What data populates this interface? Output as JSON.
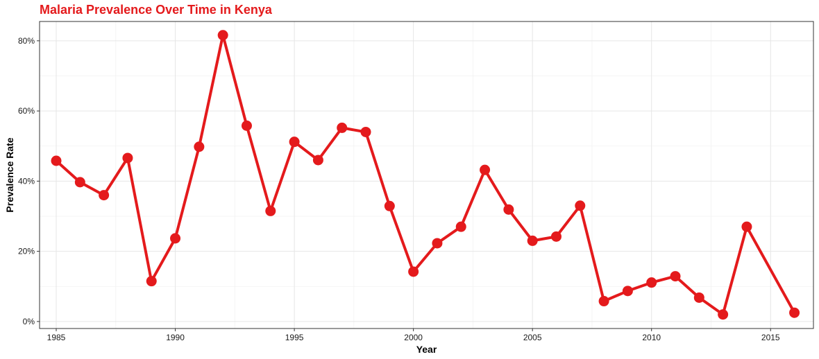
{
  "chart_data": {
    "type": "line",
    "title": "Malaria Prevalence Over Time in Kenya",
    "xlabel": "Year",
    "ylabel": "Prevalence Rate",
    "xlim": [
      1984.3,
      2016.8
    ],
    "ylim": [
      -0.02,
      0.855
    ],
    "x_ticks": [
      1985,
      1990,
      1995,
      2000,
      2005,
      2010,
      2015
    ],
    "x_tick_labels": [
      "1985",
      "1990",
      "1995",
      "2000",
      "2005",
      "2010",
      "2015"
    ],
    "y_ticks": [
      0,
      0.2,
      0.4,
      0.6,
      0.8
    ],
    "y_tick_labels": [
      "0%",
      "20%",
      "40%",
      "60%",
      "80%"
    ],
    "grid": true,
    "legend": "none",
    "color": "#e41a1c",
    "series": [
      {
        "x": [
          1985,
          1986,
          1987,
          1988,
          1989,
          1990,
          1991,
          1992,
          1993,
          1994,
          1995,
          1996,
          1997,
          1998,
          1999,
          2000,
          2001,
          2002,
          2003,
          2004,
          2005,
          2006,
          2007,
          2008,
          2009,
          2010,
          2011,
          2012,
          2013,
          2014,
          2016
        ],
        "values": [
          0.458,
          0.397,
          0.36,
          0.466,
          0.115,
          0.237,
          0.498,
          0.816,
          0.558,
          0.315,
          0.512,
          0.46,
          0.552,
          0.54,
          0.329,
          0.142,
          0.223,
          0.27,
          0.432,
          0.319,
          0.23,
          0.242,
          0.33,
          0.058,
          0.087,
          0.111,
          0.129,
          0.068,
          0.02,
          0.27,
          0.025
        ]
      }
    ]
  }
}
